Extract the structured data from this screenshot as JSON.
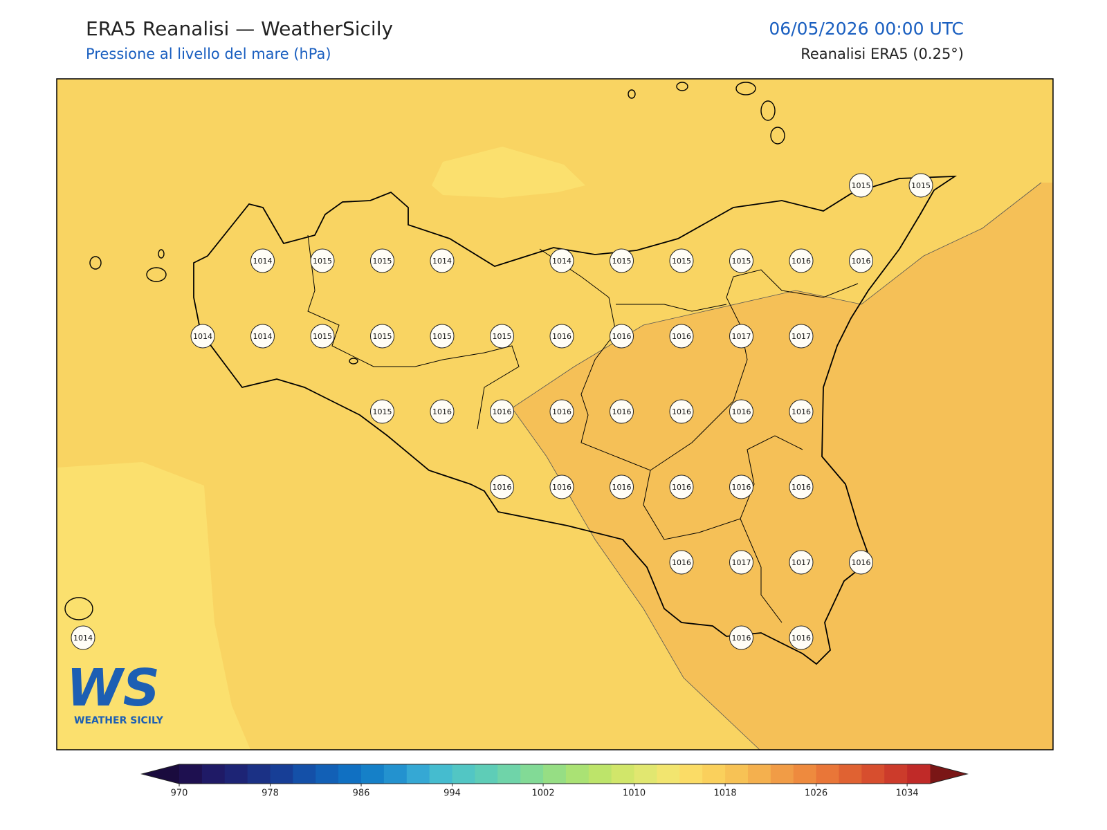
{
  "header": {
    "title": "ERA5 Reanalisi — WeatherSicily",
    "subtitle": "Pressione al livello del mare (hPa)",
    "datetime": "06/05/2026 00:00 UTC",
    "source": "Reanalisi ERA5 (0.25°)"
  },
  "stations": [
    [
      null,
      null,
      null,
      null,
      null,
      null,
      null,
      null,
      null,
      null,
      null,
      null,
      null,
      1015,
      1015
    ],
    [
      null,
      null,
      null,
      1014,
      1015,
      1015,
      1014,
      null,
      1014,
      1015,
      1015,
      1015,
      1016,
      1016,
      null
    ],
    [
      null,
      null,
      1014,
      1014,
      1015,
      1015,
      1015,
      1015,
      1016,
      1016,
      1016,
      1017,
      1017,
      null,
      null
    ],
    [
      null,
      null,
      null,
      null,
      null,
      1015,
      1016,
      1016,
      1016,
      1016,
      1016,
      1016,
      1016,
      null,
      null
    ],
    [
      null,
      null,
      null,
      null,
      null,
      null,
      null,
      1016,
      1016,
      1016,
      1016,
      1016,
      1016,
      null,
      null
    ],
    [
      null,
      null,
      null,
      null,
      null,
      null,
      null,
      null,
      null,
      null,
      1016,
      1017,
      1017,
      1016,
      null
    ],
    [
      1014,
      null,
      null,
      null,
      null,
      null,
      null,
      null,
      null,
      null,
      null,
      1016,
      1016,
      null,
      null
    ]
  ],
  "colorbar": {
    "range": [
      970,
      1036
    ],
    "ticks": [
      970,
      978,
      986,
      994,
      1002,
      1010,
      1018,
      1026,
      1034
    ],
    "colors": [
      "#1e1050",
      "#1f1a66",
      "#1d2475",
      "#1b3185",
      "#173e96",
      "#1450a8",
      "#1260b6",
      "#1070c2",
      "#1580c8",
      "#2392cf",
      "#35a8d4",
      "#45bccf",
      "#52c6c4",
      "#5ecdb7",
      "#6fd4a9",
      "#82da96",
      "#96de84",
      "#aae274",
      "#bde46a",
      "#d1e66a",
      "#e1e770",
      "#f2e56f",
      "#fbdc66",
      "#fad05c",
      "#f7c255",
      "#f4b04e",
      "#f19c46",
      "#ee8a3e",
      "#e97638",
      "#e06232",
      "#d74e2e",
      "#cc3b2b",
      "#c02a28"
    ],
    "under_color": "#1a0b3e",
    "over_color": "#7a1616"
  },
  "logo": {
    "mark": "WS",
    "name": "WEATHER SICILY"
  }
}
